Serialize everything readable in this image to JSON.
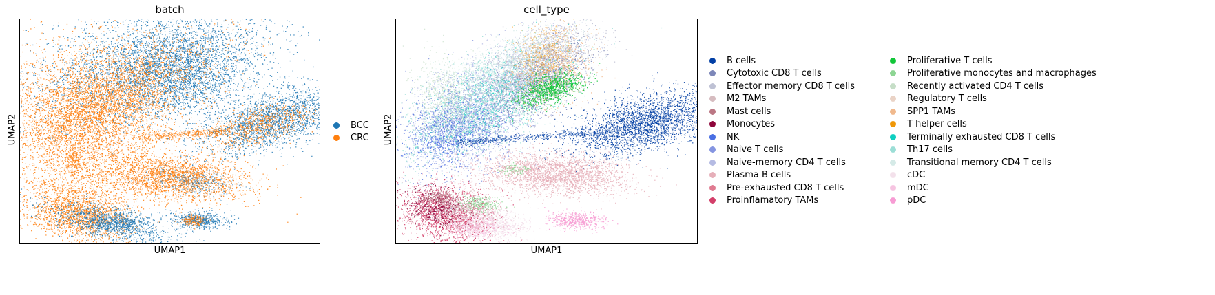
{
  "chart_data": [
    {
      "type": "scatter",
      "title": "batch",
      "xlabel": "UMAP1",
      "ylabel": "UMAP2",
      "grid": false,
      "legend_position": "right",
      "series": [
        {
          "name": "BCC",
          "color": "#1f77b4"
        },
        {
          "name": "CRC",
          "color": "#ff7f0e"
        }
      ]
    },
    {
      "type": "scatter",
      "title": "cell_type",
      "xlabel": "UMAP1",
      "ylabel": "UMAP2",
      "grid": false,
      "legend_position": "right",
      "series": [
        {
          "name": "B cells",
          "color": "#023fa5"
        },
        {
          "name": "Cytotoxic CD8 T cells",
          "color": "#7d87b9"
        },
        {
          "name": "Effector memory CD8 T cells",
          "color": "#bec1d4"
        },
        {
          "name": "M2 TAMs",
          "color": "#d6bcc0"
        },
        {
          "name": "Mast cells",
          "color": "#bb7784"
        },
        {
          "name": "Monocytes",
          "color": "#8e063b"
        },
        {
          "name": "NK",
          "color": "#4a6fe3"
        },
        {
          "name": "Naive T cells",
          "color": "#8595e1"
        },
        {
          "name": "Naive-memory CD4 T cells",
          "color": "#b5bbe3"
        },
        {
          "name": "Plasma B cells",
          "color": "#e6afb9"
        },
        {
          "name": "Pre-exhausted CD8 T cells",
          "color": "#e07b91"
        },
        {
          "name": "Proinflamatory TAMs",
          "color": "#d33f6a"
        },
        {
          "name": "Proliferative T cells",
          "color": "#11c638"
        },
        {
          "name": "Proliferative monocytes and macrophages",
          "color": "#8dd593"
        },
        {
          "name": "Recently activated CD4 T cells",
          "color": "#c6dec7"
        },
        {
          "name": "Regulatory T cells",
          "color": "#ead3c6"
        },
        {
          "name": "SPP1 TAMs",
          "color": "#f0b98d"
        },
        {
          "name": "T helper cells",
          "color": "#ef9708"
        },
        {
          "name": "Terminally exhausted CD8 T cells",
          "color": "#0fcfc0"
        },
        {
          "name": "Th17 cells",
          "color": "#9cded6"
        },
        {
          "name": "Transitional memory CD4 T cells",
          "color": "#d5eae7"
        },
        {
          "name": "cDC",
          "color": "#f3e1eb"
        },
        {
          "name": "mDC",
          "color": "#f6c4e1"
        },
        {
          "name": "pDC",
          "color": "#f79cd4"
        }
      ]
    }
  ]
}
